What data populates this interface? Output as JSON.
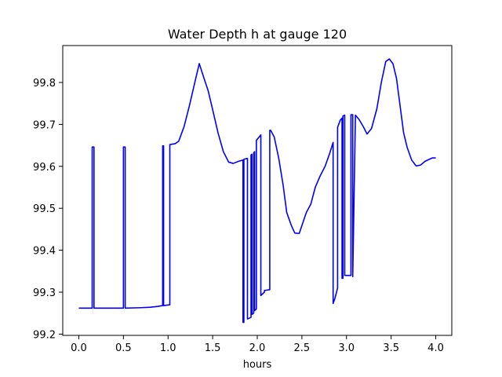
{
  "chart_data": {
    "type": "line",
    "title": "Water Depth h at gauge 120",
    "xlabel": "hours",
    "ylabel": "",
    "xlim": [
      -0.18,
      4.18
    ],
    "ylim": [
      99.197,
      99.888
    ],
    "xticks": [
      0.0,
      0.5,
      1.0,
      1.5,
      2.0,
      2.5,
      3.0,
      3.5,
      4.0
    ],
    "xtick_labels": [
      "0.0",
      "0.5",
      "1.0",
      "1.5",
      "2.0",
      "2.5",
      "3.0",
      "3.5",
      "4.0"
    ],
    "yticks": [
      99.2,
      99.3,
      99.4,
      99.5,
      99.6,
      99.7,
      99.8
    ],
    "ytick_labels": [
      "99.2",
      "99.3",
      "99.4",
      "99.5",
      "99.6",
      "99.7",
      "99.8"
    ],
    "grid": false,
    "series": [
      {
        "color": "#0000ff",
        "x": [
          0.0,
          0.15,
          0.15,
          0.17,
          0.17,
          0.5,
          0.5,
          0.52,
          0.52,
          0.7,
          0.8,
          0.88,
          0.94,
          0.94,
          0.95,
          0.95,
          1.02,
          1.02,
          1.08,
          1.12,
          1.18,
          1.24,
          1.3,
          1.35,
          1.4,
          1.45,
          1.5,
          1.56,
          1.62,
          1.68,
          1.73,
          1.79,
          1.84,
          1.84,
          1.85,
          1.85,
          1.89,
          1.89,
          1.93,
          1.93,
          1.94,
          1.94,
          1.96,
          1.96,
          1.97,
          1.97,
          1.99,
          1.99,
          2.04,
          2.04,
          2.08,
          2.08,
          2.14,
          2.14,
          2.15,
          2.19,
          2.24,
          2.29,
          2.33,
          2.38,
          2.42,
          2.47,
          2.51,
          2.55,
          2.6,
          2.65,
          2.7,
          2.76,
          2.81,
          2.85,
          2.85,
          2.87,
          2.9,
          2.9,
          2.93,
          2.95,
          2.95,
          2.96,
          2.96,
          2.98,
          2.98,
          3.05,
          3.05,
          3.07,
          3.07,
          3.1,
          3.14,
          3.19,
          3.23,
          3.28,
          3.34,
          3.39,
          3.44,
          3.48,
          3.52,
          3.56,
          3.6,
          3.64,
          3.68,
          3.73,
          3.78,
          3.83,
          3.88,
          3.92,
          3.96,
          4.0
        ],
        "y": [
          99.262,
          99.262,
          99.646,
          99.646,
          99.262,
          99.262,
          99.646,
          99.646,
          99.262,
          99.263,
          99.264,
          99.266,
          99.268,
          99.649,
          99.649,
          99.268,
          99.27,
          99.652,
          99.654,
          99.66,
          99.695,
          99.745,
          99.8,
          99.845,
          99.812,
          99.78,
          99.735,
          99.68,
          99.635,
          99.61,
          99.607,
          99.612,
          99.615,
          99.228,
          99.228,
          99.617,
          99.619,
          99.236,
          99.24,
          99.627,
          99.629,
          99.247,
          99.25,
          99.632,
          99.635,
          99.256,
          99.26,
          99.662,
          99.675,
          99.292,
          99.3,
          99.304,
          99.306,
          99.686,
          99.686,
          99.67,
          99.62,
          99.555,
          99.49,
          99.46,
          99.441,
          99.44,
          99.465,
          99.49,
          99.51,
          99.55,
          99.575,
          99.6,
          99.63,
          99.657,
          99.273,
          99.285,
          99.31,
          99.693,
          99.71,
          99.715,
          99.333,
          99.333,
          99.72,
          99.722,
          99.34,
          99.34,
          99.723,
          99.723,
          99.337,
          99.722,
          99.712,
          99.694,
          99.677,
          99.69,
          99.737,
          99.8,
          99.85,
          99.856,
          99.845,
          99.81,
          99.745,
          99.68,
          99.645,
          99.615,
          99.601,
          99.603,
          99.612,
          99.616,
          99.62,
          99.62
        ]
      }
    ]
  }
}
